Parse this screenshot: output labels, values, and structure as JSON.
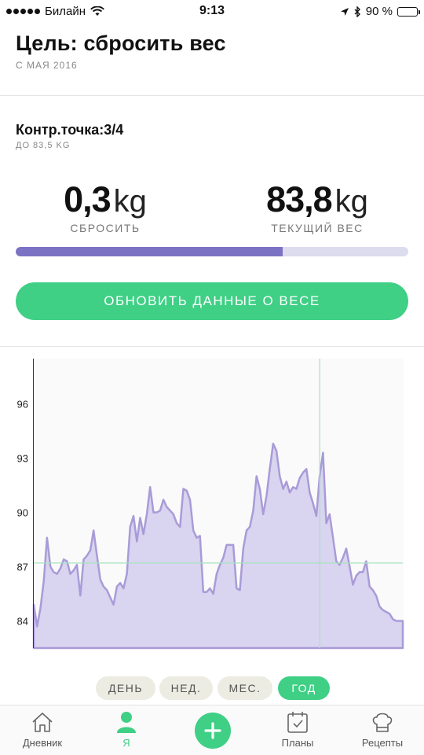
{
  "status_bar": {
    "carrier": "Билайн",
    "time": "9:13",
    "battery": "90 %",
    "battery_level": 0.9
  },
  "header": {
    "title": "Цель: сбросить вес",
    "since": "С МАЯ 2016"
  },
  "checkpoint": {
    "title": "Контр.точка:3/4",
    "subtitle": "ДО 83,5 KG"
  },
  "stats": {
    "lost_value": "0,3",
    "lost_unit": "kg",
    "lost_label": "СБРОСИТЬ",
    "current_value": "83,8",
    "current_unit": "kg",
    "current_label": "ТЕКУЩИЙ ВЕС"
  },
  "progress": {
    "fraction": 0.68
  },
  "update_button": {
    "label": "ОБНОВИТЬ ДАННЫЕ О ВЕСЕ"
  },
  "colors": {
    "accent_green": "#3fcf85",
    "progress_purple": "#7c72c4",
    "area_fill": "#d9d4ef",
    "area_line": "#a99bd8",
    "goal_line": "#a6e3bf"
  },
  "chart_data": {
    "type": "area",
    "yticks": [
      "96",
      "93",
      "90",
      "87",
      "84"
    ],
    "ylim": [
      82.5,
      98.5
    ],
    "goal_value": 87.2,
    "marker_index": 86,
    "values": [
      84.9,
      83.7,
      84.7,
      86.2,
      88.6,
      87.0,
      86.7,
      86.6,
      86.9,
      87.4,
      87.3,
      86.6,
      86.8,
      87.1,
      85.4,
      87.4,
      87.6,
      87.9,
      89.0,
      87.6,
      86.3,
      85.9,
      85.7,
      85.3,
      84.9,
      85.9,
      86.1,
      85.8,
      86.6,
      89.2,
      89.8,
      88.4,
      89.7,
      88.8,
      89.9,
      91.4,
      90.0,
      90.0,
      90.1,
      90.7,
      90.3,
      90.1,
      89.9,
      89.4,
      89.2,
      91.3,
      91.2,
      90.7,
      89.0,
      88.6,
      88.7,
      85.6,
      85.6,
      85.8,
      85.5,
      86.6,
      87.1,
      87.5,
      88.2,
      88.2,
      88.2,
      85.8,
      85.7,
      88.0,
      89.0,
      89.2,
      90.1,
      92.0,
      91.3,
      89.9,
      90.9,
      92.4,
      93.8,
      93.4,
      92.0,
      91.3,
      91.7,
      91.1,
      91.4,
      91.3,
      91.9,
      92.2,
      92.4,
      91.1,
      90.5,
      89.8,
      92.0,
      93.3,
      89.4,
      89.9,
      88.6,
      87.3,
      87.1,
      87.5,
      88.0,
      87.0,
      86.0,
      86.5,
      86.7,
      86.7,
      87.3,
      85.9,
      85.7,
      85.4,
      84.8,
      84.6,
      84.5,
      84.4,
      84.1,
      84.0,
      84.0,
      84.0
    ]
  },
  "range_tabs": [
    {
      "label": "ДЕНЬ",
      "active": false
    },
    {
      "label": "НЕД.",
      "active": false
    },
    {
      "label": "МЕС.",
      "active": false
    },
    {
      "label": "ГОД",
      "active": true
    }
  ],
  "tabbar": {
    "diary": "Дневник",
    "me": "Я",
    "plans": "Планы",
    "recipes": "Рецепты",
    "icons": [
      "home-icon",
      "person-icon",
      "plus-icon",
      "calendar-check-icon",
      "chef-hat-icon"
    ]
  }
}
